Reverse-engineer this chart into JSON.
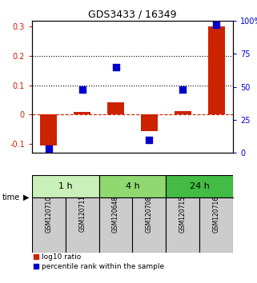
{
  "title": "GDS3433 / 16349",
  "samples": [
    "GSM120710",
    "GSM120711",
    "GSM120648",
    "GSM120708",
    "GSM120715",
    "GSM120716"
  ],
  "log10_ratio": [
    -0.105,
    0.008,
    0.043,
    -0.055,
    0.012,
    0.3
  ],
  "percentile_rank": [
    3,
    48,
    65,
    10,
    48,
    97
  ],
  "time_groups": [
    {
      "label": "1 h",
      "start": 0,
      "end": 2,
      "color": "#c8f0b8"
    },
    {
      "label": "4 h",
      "start": 2,
      "end": 4,
      "color": "#90d870"
    },
    {
      "label": "24 h",
      "start": 4,
      "end": 6,
      "color": "#44bb44"
    }
  ],
  "left_ylim": [
    -0.13,
    0.32
  ],
  "right_ylim": [
    0,
    100
  ],
  "left_yticks": [
    -0.1,
    0.0,
    0.1,
    0.2,
    0.3
  ],
  "right_yticks": [
    0,
    25,
    50,
    75,
    100
  ],
  "right_yticklabels": [
    "0",
    "25",
    "50",
    "75",
    "100%"
  ],
  "bar_color": "#cc2200",
  "dot_color": "#0000cc",
  "hline_dotted_values": [
    0.1,
    0.2
  ],
  "hline_dashed_value": 0.0,
  "bar_width": 0.5,
  "dot_size": 35,
  "left_tick_color": "#cc2200",
  "right_tick_color": "#0000cc",
  "sample_box_color": "#cccccc",
  "figsize": [
    3.21,
    3.54
  ],
  "dpi": 100
}
